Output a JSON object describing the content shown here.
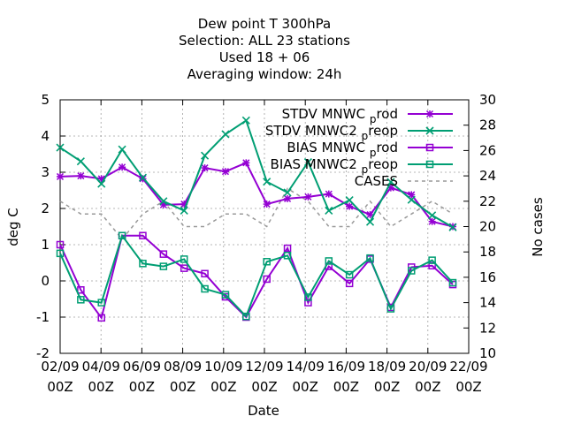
{
  "chart_data": {
    "type": "line",
    "title_lines": [
      "Dew point T 300hPa",
      "Selection: ALL      23 stations",
      "Used  18 + 06",
      "Averaging window: 24h"
    ],
    "xlabel": "Date",
    "ylabel": "deg C",
    "y2label": "No cases",
    "x_tick_labels": [
      {
        "day": "02/09",
        "hour": "00Z"
      },
      {
        "day": "04/09",
        "hour": "00Z"
      },
      {
        "day": "06/09",
        "hour": "00Z"
      },
      {
        "day": "08/09",
        "hour": "00Z"
      },
      {
        "day": "10/09",
        "hour": "00Z"
      },
      {
        "day": "12/09",
        "hour": "00Z"
      },
      {
        "day": "14/09",
        "hour": "00Z"
      },
      {
        "day": "16/09",
        "hour": "00Z"
      },
      {
        "day": "18/09",
        "hour": "00Z"
      },
      {
        "day": "20/09",
        "hour": "00Z"
      },
      {
        "day": "22/09",
        "hour": "00Z"
      }
    ],
    "x_days": 20,
    "y_ticks": [
      -2,
      -1,
      0,
      1,
      2,
      3,
      4,
      5
    ],
    "ylim": [
      -2,
      5
    ],
    "y2_ticks": [
      10,
      12,
      14,
      16,
      18,
      20,
      22,
      24,
      26,
      28,
      30
    ],
    "y2lim": [
      10,
      30
    ],
    "grid": true,
    "legend_position": "top-right",
    "x": [
      0,
      1,
      2,
      3,
      4,
      5,
      6,
      7,
      8,
      9,
      10,
      11,
      12,
      13,
      14,
      15,
      16,
      17,
      18,
      19
    ],
    "series": [
      {
        "name": "STDV MNWC_prod",
        "legend_main": "STDV MNWC",
        "legend_sub": "p",
        "legend_tail": "rod",
        "color": "#9400d3",
        "marker": "star",
        "axis": "y1",
        "values": [
          2.88,
          2.9,
          2.82,
          3.14,
          2.82,
          2.1,
          2.12,
          3.12,
          3.02,
          3.26,
          2.12,
          2.27,
          2.32,
          2.4,
          2.06,
          1.83,
          2.57,
          2.38,
          1.64,
          1.5
        ]
      },
      {
        "name": "STDV MNWC2_preop",
        "legend_main": "STDV MNWC2",
        "legend_sub": "p",
        "legend_tail": "reop",
        "color": "#009e73",
        "marker": "x",
        "axis": "y1",
        "values": [
          3.68,
          3.3,
          2.68,
          3.63,
          2.85,
          2.2,
          1.94,
          3.46,
          4.05,
          4.43,
          2.74,
          2.44,
          3.28,
          1.94,
          2.23,
          1.63,
          2.73,
          2.24,
          1.81,
          1.48
        ]
      },
      {
        "name": "BIAS MNWC_prod",
        "legend_main": "BIAS MNWC",
        "legend_sub": "p",
        "legend_tail": "rod",
        "color": "#9400d3",
        "marker": "square",
        "axis": "y1",
        "values": [
          1.0,
          -0.25,
          -1.02,
          1.25,
          1.25,
          0.74,
          0.35,
          0.2,
          -0.44,
          -1.0,
          0.05,
          0.9,
          -0.6,
          0.4,
          -0.07,
          0.6,
          -0.73,
          0.38,
          0.42,
          -0.1
        ]
      },
      {
        "name": "BIAS MNWC2_preop",
        "legend_main": "BIAS MNWC2",
        "legend_sub": "p",
        "legend_tail": "reop",
        "color": "#009e73",
        "marker": "square",
        "axis": "y1",
        "values": [
          0.76,
          -0.52,
          -0.6,
          1.25,
          0.48,
          0.4,
          0.6,
          -0.22,
          -0.38,
          -0.98,
          0.53,
          0.7,
          -0.45,
          0.55,
          0.17,
          0.63,
          -0.77,
          0.28,
          0.57,
          -0.05
        ]
      },
      {
        "name": "CASES",
        "legend_main": "CASES",
        "legend_sub": "",
        "legend_tail": "",
        "color": "#999999",
        "marker": "none",
        "axis": "y2",
        "dashed": true,
        "values": [
          22,
          21,
          21,
          19,
          21,
          22,
          20,
          20,
          21,
          21,
          20,
          23,
          22,
          20,
          20,
          22,
          20,
          21,
          22,
          21
        ]
      }
    ]
  }
}
